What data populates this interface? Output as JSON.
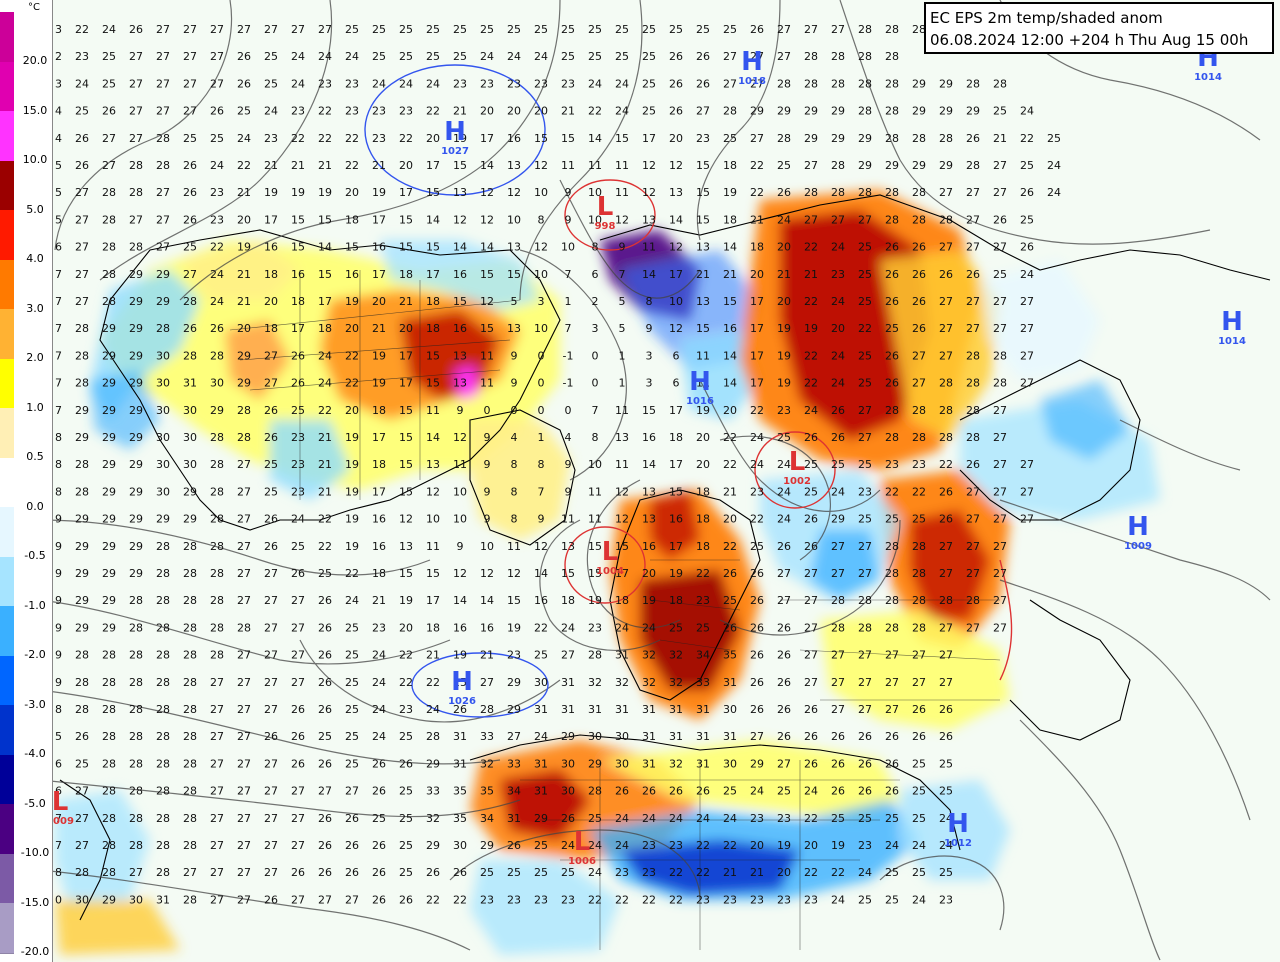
{
  "title": {
    "line1": "EC EPS 2m temp/shaded anom",
    "line2": "06.08.2024 12:00 +204 h Thu Aug 15 00h"
  },
  "legend": {
    "unit": "°C",
    "ticks": [
      "20.0",
      "15.0",
      "10.0",
      "5.0",
      "4.0",
      "3.0",
      "2.0",
      "1.0",
      "0.5",
      "0.0",
      "-0.5",
      "-1.0",
      "-2.0",
      "-3.0",
      "-4.0",
      "-5.0",
      "-10.0",
      "-15.0",
      "-20.0"
    ],
    "colors": [
      "#cc0099",
      "#e000b0",
      "#ff33ff",
      "#9b0000",
      "#ff1a00",
      "#ff7a00",
      "#ffb233",
      "#ffff00",
      "#ffefb5",
      "#ffffff",
      "#e6f7ff",
      "#a6e4ff",
      "#3ab0ff",
      "#0066ff",
      "#0033cc",
      "#000099",
      "#4b0082",
      "#7c5aa6",
      "#a89cc5"
    ]
  },
  "pressure_centers": [
    {
      "type": "H",
      "value": "1027",
      "color": "#3355ee"
    },
    {
      "type": "H",
      "value": "1018",
      "color": "#3355ee"
    },
    {
      "type": "H",
      "value": "1014",
      "color": "#3355ee"
    },
    {
      "type": "H",
      "value": "1014",
      "color": "#3355ee"
    },
    {
      "type": "H",
      "value": "1026",
      "color": "#3355ee"
    },
    {
      "type": "H",
      "value": "1009",
      "color": "#3355ee"
    },
    {
      "type": "H",
      "value": "1012",
      "color": "#3355ee"
    },
    {
      "type": "H",
      "value": "1016",
      "color": "#3355ee"
    },
    {
      "type": "L",
      "value": "998",
      "color": "#dd3333"
    },
    {
      "type": "L",
      "value": "1002",
      "color": "#dd3333"
    },
    {
      "type": "L",
      "value": "1004",
      "color": "#dd3333"
    },
    {
      "type": "L",
      "value": "1006",
      "color": "#dd3333"
    },
    {
      "type": "L",
      "value": "1009",
      "color": "#dd3333"
    }
  ],
  "temperature_grid": {
    "rows": [
      "3 22 24 26 27 27 27 27 27 27 27 25 25 25 25 25 25 25 25 25 25 25 25 25 25 25 26 27 27 27 28 28 28 28",
      "2 23 25 27 27 27 27 26 25 24 24 24 25 25 25 25 24 24 24 25 25 25 25 26 26 27 27 27 28 28 28 28",
      "3 24 25 27 27 27 27 26 25 24 23 23 24 24 24 23 23 23 23 23 24 24 25 26 26 27 27 28 28 28 28 28 29 29 28 28",
      "4 25 26 27 27 27 26 25 24 23 22 23 23 23 22 21 20 20 20 21 22 24 25 26 27 28 29 29 29 29 28 28 29 29 29 25 24",
      "4 26 27 27 28 25 25 24 23 22 22 22 23 22 20 19 17 16 15 15 14 15 17 20 23 25 27 28 29 29 29 28 28 28 26 21 22 25",
      "5 26 27 28 28 26 24 22 21 21 21 22 21 20 17 15 14 13 12 11 11 11 12 12 15 18 22 25 27 28 29 29 29 29 28 27 25 24",
      "5 27 28 28 27 26 23 21 19 19 19 20 19 17 15 13 12 12 10 9 10 11 12 13 15 19 22 26 28 28 28 28 28 27 27 27 26 24",
      "5 27 28 27 27 26 23 20 17 15 15 18 17 15 14 12 12 10 8 9 10 12 13 14 15 18 21 24 27 27 27 28 28 28 27 26 25",
      "6 27 28 28 27 25 22 19 16 15 14 15 16 15 15 14 14 13 12 10 8 9 11 12 13 14 18 20 22 24 25 26 26 27 27 27 26",
      "7 27 28 29 29 27 24 21 18 16 15 16 17 18 17 16 15 15 10 7 6 7 14 17 21 21 20 21 21 23 25 26 26 26 26 25 24",
      "7 27 28 29 29 28 24 21 20 18 17 19 20 21 18 15 12 5 3 1 2 5 8 10 13 15 17 20 22 24 25 26 26 27 27 27 27",
      "7 28 29 29 28 26 26 20 18 17 18 20 21 20 18 16 15 13 10 7 3 5 9 12 15 16 17 19 19 20 22 25 26 27 27 27 27",
      "7 28 29 29 30 28 28 29 27 26 24 22 19 17 15 13 11 9 0 -1 0 1 3 6 11 14 17 19 22 24 25 26 27 27 28 28 27",
      "7 28 29 29 30 31 30 29 27 26 24 22 19 17 15 13 11 9 0 -1 0 1 3 6 11 14 17 19 22 24 25 26 27 28 28 28 27",
      "7 29 29 29 30 30 29 28 26 25 22 20 18 15 11 9 0 0 0 0 7 11 15 17 19 20 22 23 24 26 27 28 28 28 28 27",
      "8 29 29 29 30 30 28 28 26 23 21 19 17 15 14 12 9 4 1 4 8 13 16 18 20 22 24 25 26 26 27 28 28 28 28 27",
      "8 28 29 29 30 30 28 27 25 23 21 19 18 15 13 11 9 8 8 9 10 11 14 17 20 22 24 24 25 25 25 23 23 22 26 27 27",
      "8 28 29 29 30 29 28 27 25 23 21 19 17 15 12 10 9 8 7 9 11 12 13 15 18 21 23 24 25 24 23 22 22 26 27 27 27",
      "9 29 29 29 29 29 28 27 26 24 22 19 16 12 10 10 9 8 9 11 11 12 13 16 18 20 22 24 26 29 25 25 25 26 27 27 27",
      "9 29 29 29 28 28 28 27 26 25 22 19 16 13 11 9 10 11 12 13 15 15 16 17 18 22 25 26 26 27 27 28 28 27 27 27",
      "9 29 29 29 28 28 28 27 27 26 25 22 18 15 15 12 12 12 14 15 15 17 20 19 22 26 26 27 27 27 27 28 28 27 27 27",
      "9 29 29 28 28 28 28 27 27 27 26 24 21 19 17 14 14 15 16 18 19 18 19 18 23 25 26 27 27 28 28 28 28 28 28 27",
      "9 29 29 28 28 28 28 28 27 27 26 25 23 20 18 16 16 19 22 24 23 24 24 25 25 26 26 26 27 28 28 28 28 27 27 27",
      "9 28 28 28 28 28 28 27 27 27 26 25 24 22 21 19 21 23 25 27 28 31 32 32 34 35 26 26 27 27 27 27 27 27",
      "9 28 28 28 28 28 27 27 27 27 26 25 24 22 22 25 27 29 30 31 32 32 32 32 33 31 26 26 27 27 27 27 27 27",
      "8 28 28 28 28 28 27 27 27 26 26 25 24 23 24 26 28 29 31 31 31 31 31 31 31 30 26 26 26 27 27 27 26 26",
      "5 26 28 28 28 28 27 27 26 26 25 25 24 25 28 31 33 27 24 29 30 30 31 31 31 31 27 26 26 26 26 26 26 26",
      "6 25 28 28 28 28 27 27 27 26 26 25 26 26 29 31 32 33 31 30 29 30 31 32 31 30 29 27 26 26 26 26 25 25",
      "6 27 28 28 28 28 27 27 27 27 27 27 26 25 33 35 35 34 31 30 28 26 26 26 26 25 24 25 24 26 26 26 25 25",
      "7 27 28 28 28 28 27 27 27 27 26 26 25 25 32 35 34 31 29 26 25 24 24 24 24 24 23 23 22 25 25 25 25 24",
      "7 27 28 28 28 28 27 27 27 27 26 26 26 25 29 30 29 26 25 24 24 24 23 23 22 22 20 19 20 19 23 24 24 24",
      "8 28 28 27 28 27 27 27 27 26 26 26 26 25 26 26 25 25 25 25 24 23 23 22 22 21 21 20 22 22 24 25 25 25",
      "0 30 29 30 31 28 27 27 26 27 27 27 26 26 22 22 23 23 23 23 22 22 22 22 23 23 23 23 23 24 25 25 24 23"
    ]
  }
}
